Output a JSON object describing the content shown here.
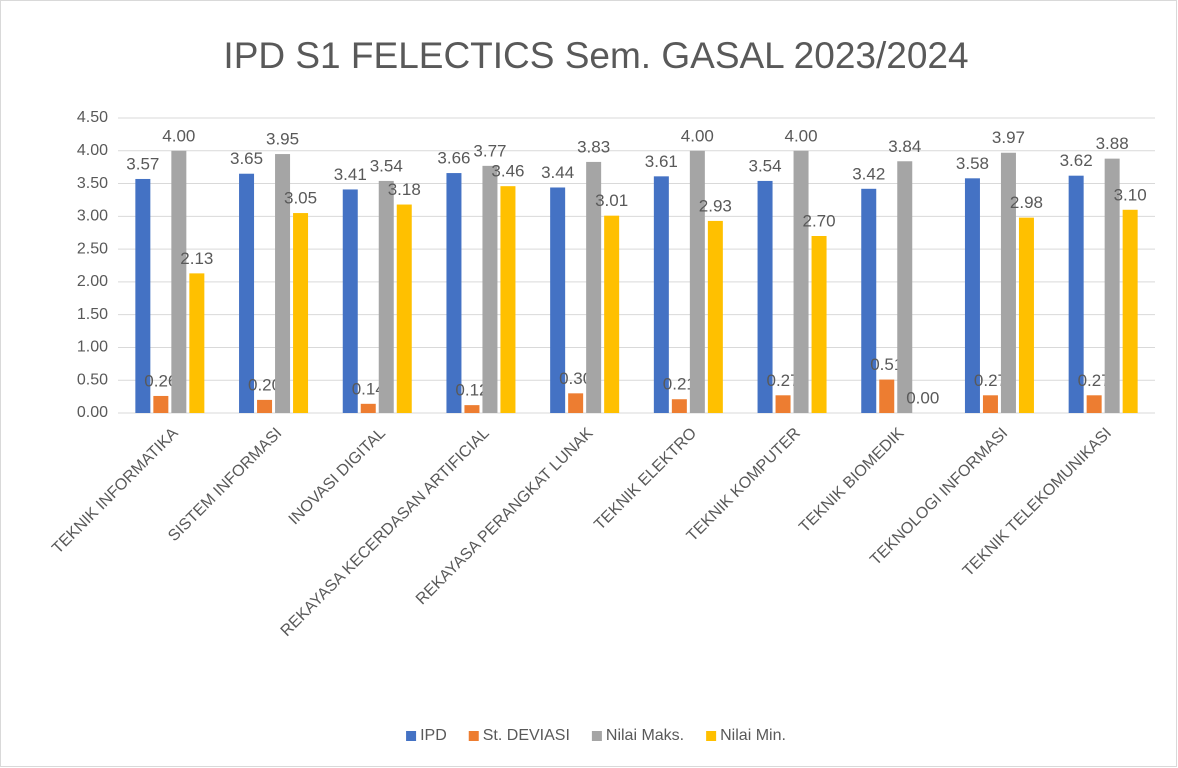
{
  "chart_data": {
    "type": "bar",
    "title": "IPD S1 FELECTICS Sem. GASAL 2023/2024",
    "categories": [
      "TEKNIK INFORMATIKA",
      "SISTEM INFORMASI",
      "INOVASI DIGITAL",
      "REKAYASA KECERDASAN ARTIFICIAL",
      "REKAYASA PERANGKAT LUNAK",
      "TEKNIK ELEKTRO",
      "TEKNIK KOMPUTER",
      "TEKNIK BIOMEDIK",
      "TEKNOLOGI INFORMASI",
      "TEKNIK TELEKOMUNIKASI"
    ],
    "series": [
      {
        "name": "IPD",
        "color": "#4472c4",
        "values": [
          3.57,
          3.65,
          3.41,
          3.66,
          3.44,
          3.61,
          3.54,
          3.42,
          3.58,
          3.62
        ],
        "value_labels": [
          "3.57",
          "3.65",
          "3.41",
          "3.66",
          "3.44",
          "3.61",
          "3.54",
          "3.42",
          "3.58",
          "3.62"
        ]
      },
      {
        "name": "St. DEVIASI",
        "color": "#ed7d31",
        "values": [
          0.26,
          0.2,
          0.14,
          0.12,
          0.3,
          0.21,
          0.27,
          0.51,
          0.27,
          0.27
        ],
        "value_labels": [
          "0.26",
          "0.20",
          "0.14",
          "0.12",
          "0.30",
          "0.21",
          "0.27",
          "0.51",
          "0.27",
          "0.27"
        ]
      },
      {
        "name": "Nilai Maks.",
        "color": "#a5a5a5",
        "values": [
          4,
          3.95,
          3.54,
          3.77,
          3.83,
          4,
          4,
          3.84,
          3.97,
          3.88
        ],
        "value_labels": [
          "4.00",
          "3.95",
          "3.54",
          "3.77",
          "3.83",
          "4.00",
          "4.00",
          "3.84",
          "3.97",
          "3.88"
        ]
      },
      {
        "name": "Nilai Min.",
        "color": "#ffc000",
        "values": [
          2.13,
          3.05,
          3.18,
          3.46,
          3.01,
          2.93,
          2.7,
          0,
          2.98,
          3.1
        ],
        "value_labels": [
          "2.13",
          "3.05",
          "3.18",
          "3.46",
          "3.01",
          "2.93",
          "2.70",
          "0.00",
          "2.98",
          "3.10"
        ]
      }
    ],
    "ylim": [
      0,
      4.5
    ],
    "yticks": [
      {
        "value": 0,
        "label": "0.00"
      },
      {
        "value": 0.5,
        "label": "0.50"
      },
      {
        "value": 1,
        "label": "1.00"
      },
      {
        "value": 1.5,
        "label": "1.50"
      },
      {
        "value": 2,
        "label": "2.00"
      },
      {
        "value": 2.5,
        "label": "2.50"
      },
      {
        "value": 3,
        "label": "3.00"
      },
      {
        "value": 3.5,
        "label": "3.50"
      },
      {
        "value": 4,
        "label": "4.00"
      },
      {
        "value": 4.5,
        "label": "4.50"
      }
    ],
    "grid": true,
    "legend": "bottom"
  }
}
